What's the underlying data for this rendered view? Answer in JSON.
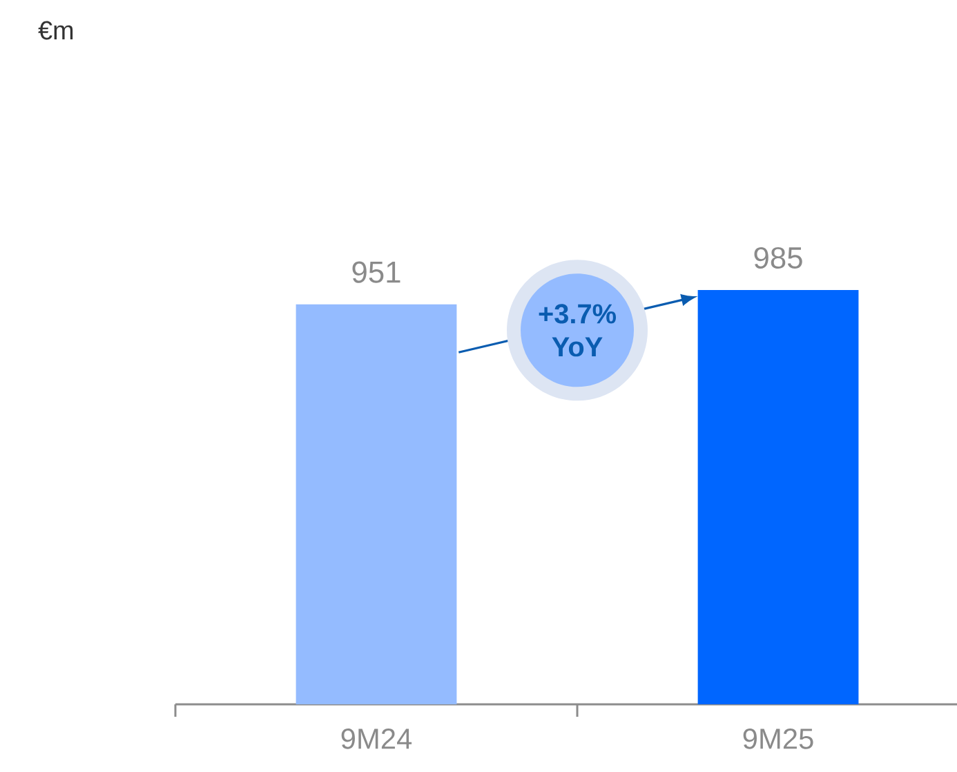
{
  "chart_data": {
    "type": "bar",
    "categories": [
      "9M24",
      "9M25"
    ],
    "values": [
      951,
      985
    ],
    "colors": [
      "#94bbff",
      "#0066ff"
    ],
    "data_labels": true,
    "annotations": [
      "€m",
      "+3.7% YoY"
    ]
  }
}
